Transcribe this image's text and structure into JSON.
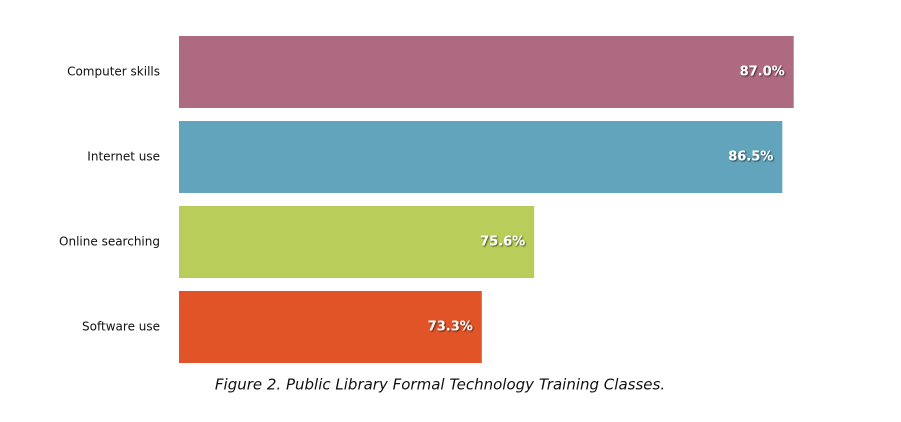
{
  "chart_data": {
    "type": "bar",
    "orientation": "horizontal",
    "title": "Figure 2. Public Library Formal Technology Training Classes.",
    "categories": [
      "Computer skills",
      "Internet use",
      "Online searching",
      "Software use"
    ],
    "values": [
      87.0,
      86.5,
      75.6,
      73.3
    ],
    "value_labels": [
      "87.0%",
      "86.5%",
      "75.6%",
      "73.3%"
    ],
    "colors": [
      "#ae6a80",
      "#61a4bb",
      "#b9cd5a",
      "#e05428"
    ],
    "xlim": [
      60,
      90
    ]
  }
}
